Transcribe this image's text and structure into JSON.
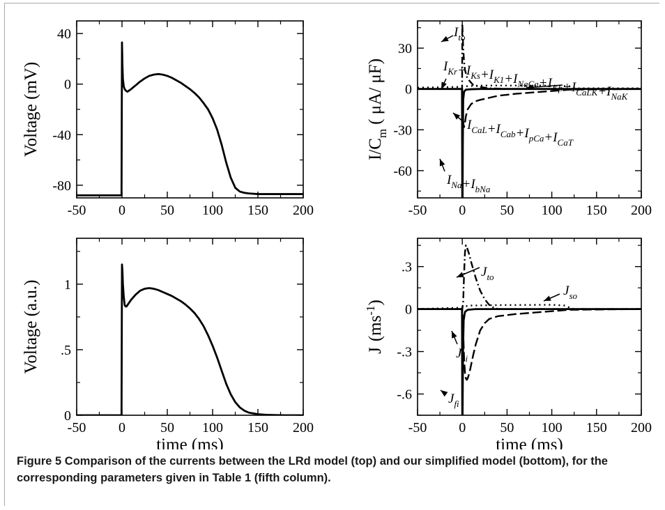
{
  "figure": {
    "caption_label": "Figure 5",
    "caption_text": "Comparison of the currents between the LRd model (top) and our simplified model (bottom), for the corresponding parameters given in Table 1 (fifth column)."
  },
  "chart_data": [
    {
      "id": "lrd-voltage",
      "type": "line",
      "title": "",
      "xlabel": "",
      "ylabel": "Voltage (mV)",
      "xlim": [
        -50,
        200
      ],
      "ylim": [
        -90,
        50
      ],
      "xticks": [
        -50,
        0,
        50,
        100,
        150,
        200
      ],
      "yticks": [
        -80,
        -40,
        0,
        40
      ],
      "grid": false,
      "series": [
        {
          "style": "solid",
          "x": [
            -50,
            -0.5,
            0,
            0.5,
            1,
            2,
            3,
            4,
            6,
            8,
            10,
            15,
            20,
            25,
            30,
            35,
            40,
            45,
            50,
            55,
            60,
            65,
            70,
            75,
            80,
            85,
            90,
            95,
            100,
            105,
            110,
            115,
            120,
            125,
            130,
            135,
            140,
            150,
            200
          ],
          "y": [
            -88,
            -88,
            33,
            15,
            4,
            -2,
            -4,
            -5,
            -6,
            -5,
            -4,
            -1,
            2,
            4.5,
            6.5,
            7.5,
            8,
            7.5,
            6.5,
            5,
            3,
            1,
            -1.5,
            -4,
            -7,
            -10.5,
            -15,
            -20,
            -27,
            -36,
            -48,
            -62,
            -74,
            -82,
            -85,
            -86,
            -86.5,
            -87,
            -87
          ]
        }
      ]
    },
    {
      "id": "lrd-currents",
      "type": "line",
      "title": "",
      "xlabel": "",
      "ylabel_main": "I/C",
      "ylabel_sub": "m",
      "ylabel_units": "( μA/ μF)",
      "xlim": [
        -50,
        200
      ],
      "ylim": [
        -80,
        50
      ],
      "xticks": [
        -50,
        0,
        50,
        100,
        150,
        200
      ],
      "yticks": [
        -60,
        -30,
        0,
        30
      ],
      "grid": false,
      "series": [
        {
          "style": "solid",
          "x": [
            -50,
            -0.3,
            0,
            0.3,
            0.6,
            1,
            2,
            4,
            10,
            20,
            50,
            200
          ],
          "y": [
            0,
            0,
            -80,
            -80,
            -40,
            -8,
            -2,
            -0.5,
            -0.2,
            0,
            0,
            0
          ]
        },
        {
          "style": "dashed",
          "x": [
            -50,
            0,
            1,
            2,
            3,
            4,
            6,
            10,
            15,
            20,
            30,
            40,
            60,
            80,
            100,
            120,
            200
          ],
          "y": [
            0,
            0,
            -25,
            -28,
            -25,
            -20,
            -15,
            -11,
            -9,
            -8,
            -6.5,
            -5,
            -3.5,
            -2.5,
            -1.5,
            -0.5,
            0
          ]
        },
        {
          "style": "dashdot",
          "x": [
            -50,
            -0.2,
            0,
            0.5,
            1,
            2,
            3,
            5,
            8,
            12,
            20,
            30,
            50,
            200
          ],
          "y": [
            0,
            0,
            48,
            40,
            30,
            20,
            14,
            9,
            6,
            3,
            1.5,
            0.5,
            0,
            0
          ]
        },
        {
          "style": "dotted",
          "x": [
            -50,
            0,
            5,
            20,
            60,
            100,
            120,
            125,
            130,
            200
          ],
          "y": [
            1,
            1.5,
            2,
            2.5,
            2.5,
            2.5,
            2,
            1,
            0.5,
            0.5
          ]
        }
      ],
      "annotations": [
        {
          "sym": "I",
          "sub": "to"
        },
        {
          "parts": [
            [
              "I",
              "Kr"
            ],
            [
              "+I",
              "Ks"
            ],
            [
              "+I",
              "K1"
            ],
            [
              "+I",
              "NaCa"
            ],
            [
              "+I",
              "Kp"
            ],
            [
              "+I",
              "CaLK"
            ],
            [
              "+I",
              "NaK"
            ]
          ]
        },
        {
          "parts": [
            [
              "I",
              "CaL"
            ],
            [
              "+I",
              "Cab"
            ],
            [
              "+I",
              "pCa"
            ],
            [
              "+I",
              "CaT"
            ]
          ]
        },
        {
          "parts": [
            [
              "I",
              "Na"
            ],
            [
              "+I",
              "bNa"
            ]
          ]
        }
      ]
    },
    {
      "id": "simplified-voltage",
      "type": "line",
      "title": "",
      "xlabel": "time (ms)",
      "ylabel": "Voltage (a.u.)",
      "xlim": [
        -50,
        200
      ],
      "ylim": [
        0,
        1.35
      ],
      "xticks": [
        -50,
        0,
        50,
        100,
        150,
        200
      ],
      "yticks": [
        0,
        0.5,
        1
      ],
      "grid": false,
      "series": [
        {
          "style": "solid",
          "x": [
            -50,
            -0.5,
            0,
            0.5,
            1,
            2,
            3,
            4,
            5,
            6,
            8,
            10,
            15,
            20,
            25,
            30,
            35,
            40,
            45,
            50,
            55,
            60,
            65,
            70,
            75,
            80,
            85,
            90,
            95,
            100,
            105,
            110,
            115,
            120,
            125,
            130,
            135,
            140,
            150,
            160,
            170,
            180,
            200
          ],
          "y": [
            0,
            0,
            1.15,
            1.1,
            1.0,
            0.9,
            0.84,
            0.83,
            0.83,
            0.84,
            0.86,
            0.88,
            0.92,
            0.95,
            0.965,
            0.97,
            0.965,
            0.955,
            0.94,
            0.925,
            0.91,
            0.89,
            0.87,
            0.845,
            0.815,
            0.78,
            0.735,
            0.68,
            0.61,
            0.53,
            0.44,
            0.34,
            0.24,
            0.16,
            0.1,
            0.06,
            0.035,
            0.02,
            0.008,
            0.003,
            0.001,
            0,
            0
          ]
        }
      ]
    },
    {
      "id": "simplified-currents",
      "type": "line",
      "title": "",
      "xlabel": "time (ms)",
      "ylabel_main": "J",
      "ylabel_units": "(ms",
      "ylabel_sup": "-1",
      "ylabel_close": ")",
      "xlim": [
        -50,
        200
      ],
      "ylim": [
        -0.75,
        0.5
      ],
      "xticks": [
        -50,
        0,
        50,
        100,
        150,
        200
      ],
      "yticks": [
        -0.6,
        -0.3,
        0,
        0.3
      ],
      "grid": false,
      "series": [
        {
          "style": "solid",
          "x": [
            -50,
            -0.3,
            0,
            0.3,
            0.8,
            1.5,
            3,
            6,
            15,
            200
          ],
          "y": [
            0,
            0,
            -0.75,
            -0.75,
            -0.3,
            -0.08,
            -0.02,
            -0.005,
            0,
            0
          ]
        },
        {
          "style": "dashed",
          "x": [
            -50,
            0,
            1,
            2,
            3,
            4,
            5,
            6,
            8,
            10,
            12,
            15,
            20,
            25,
            30,
            40,
            60,
            80,
            100,
            120,
            200
          ],
          "y": [
            0,
            0,
            -0.15,
            -0.35,
            -0.45,
            -0.49,
            -0.5,
            -0.49,
            -0.45,
            -0.39,
            -0.33,
            -0.25,
            -0.15,
            -0.1,
            -0.07,
            -0.05,
            -0.035,
            -0.025,
            -0.015,
            -0.005,
            0
          ]
        },
        {
          "style": "dashdot",
          "x": [
            -50,
            0,
            1,
            2,
            3,
            4,
            5,
            6,
            8,
            10,
            15,
            20,
            25,
            30,
            35,
            40,
            200
          ],
          "y": [
            0,
            0,
            0.05,
            0.25,
            0.4,
            0.45,
            0.44,
            0.42,
            0.38,
            0.33,
            0.22,
            0.13,
            0.07,
            0.03,
            0.01,
            0,
            0
          ]
        },
        {
          "style": "dotted",
          "x": [
            -50,
            0,
            3,
            10,
            40,
            100,
            115,
            120,
            125,
            200
          ],
          "y": [
            0,
            0.01,
            0.02,
            0.025,
            0.028,
            0.03,
            0.025,
            0.01,
            0,
            0
          ]
        }
      ],
      "annotations": [
        {
          "sym": "J",
          "sub": "to"
        },
        {
          "sym": "J",
          "sub": "so"
        },
        {
          "sym": "J",
          "sub": "si"
        },
        {
          "sym": "J",
          "sub": "fi"
        }
      ]
    }
  ]
}
